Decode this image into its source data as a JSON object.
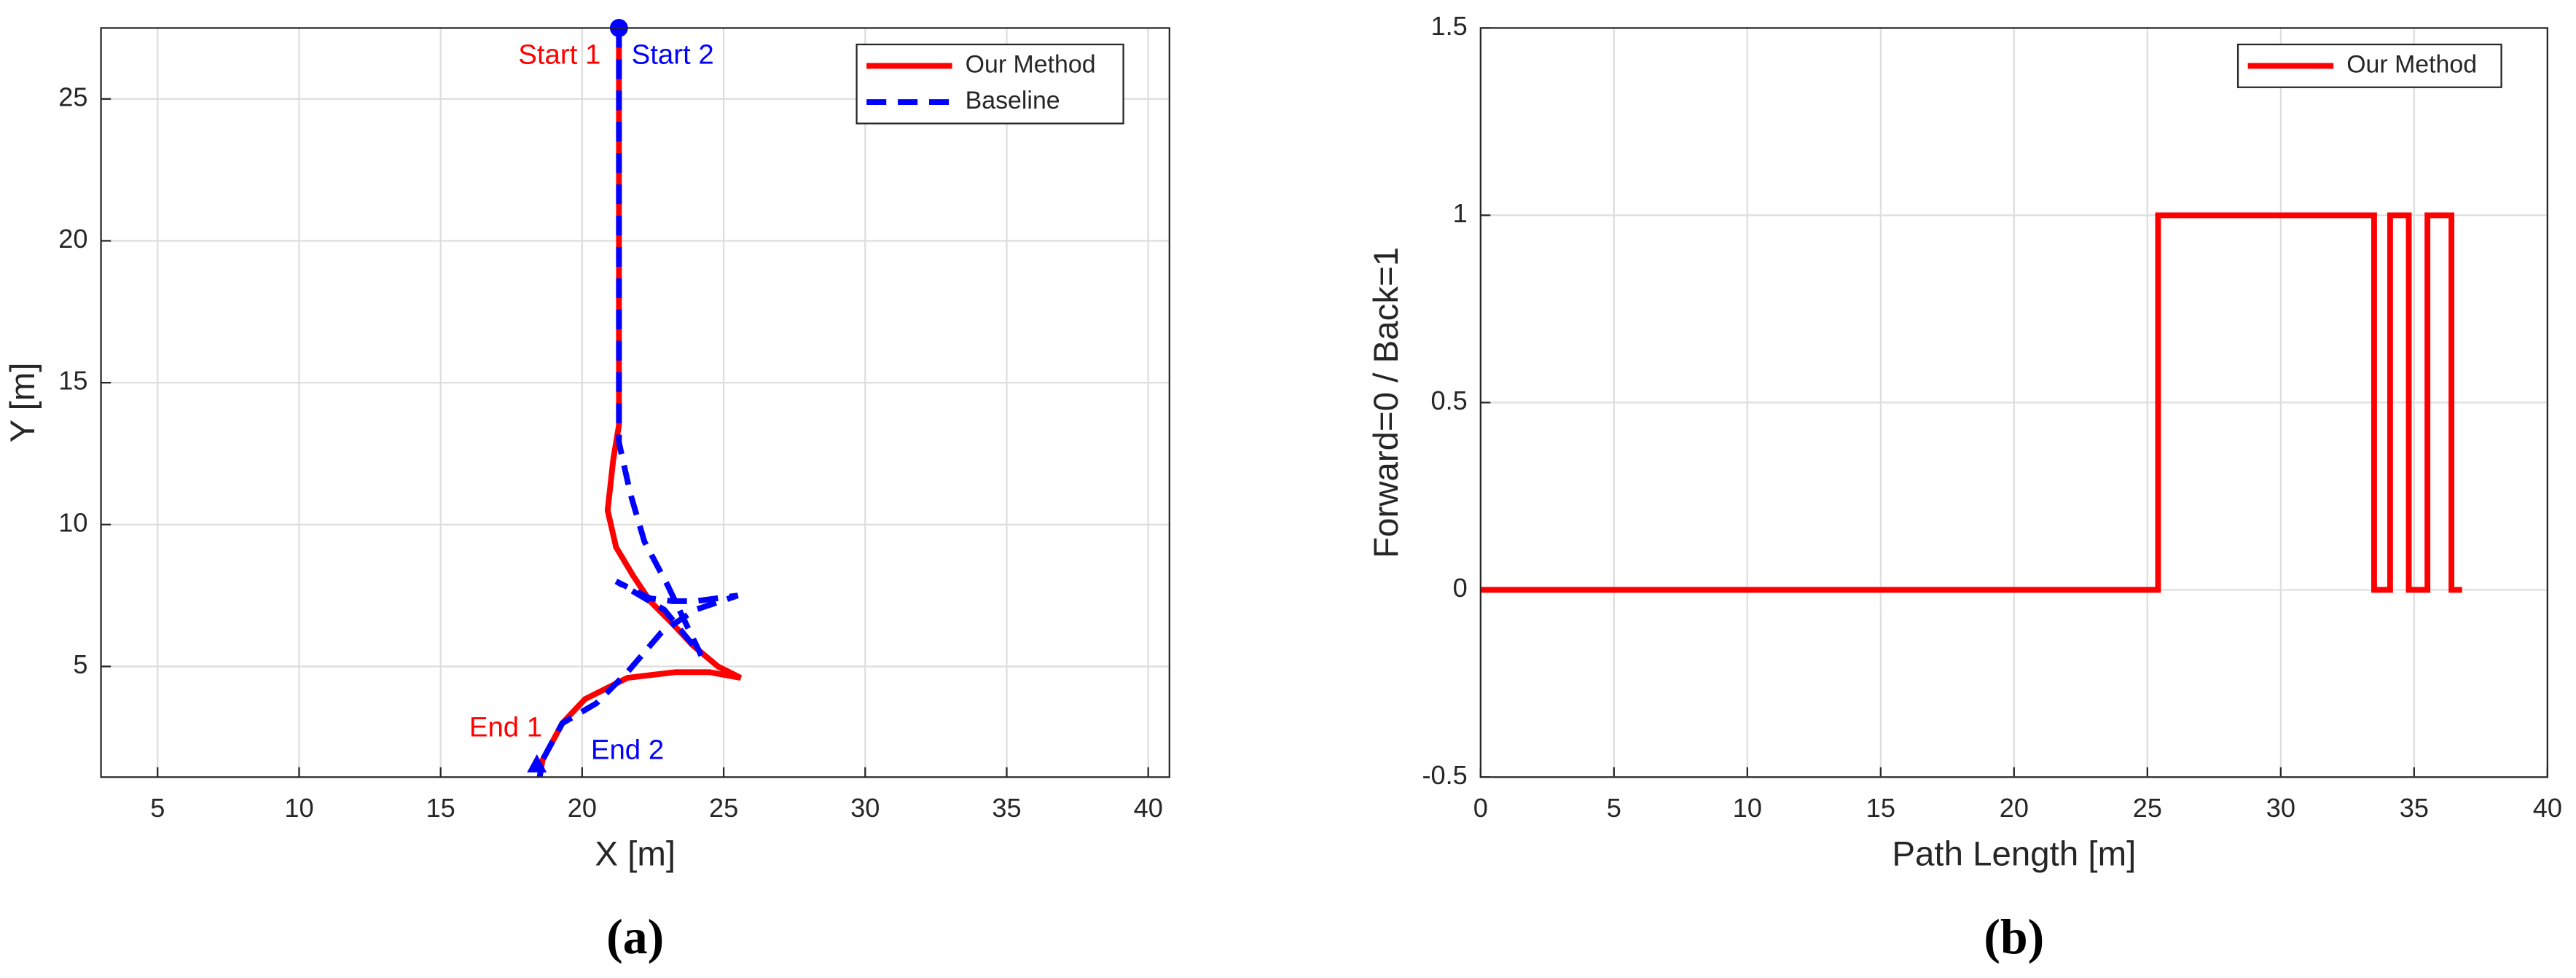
{
  "chart_data": [
    {
      "type": "line",
      "caption": "(a)",
      "xlabel": "X [m]",
      "ylabel": "Y [m]",
      "xlim": [
        3,
        40.75
      ],
      "ylim": [
        1.1,
        27.5
      ],
      "xticks": [
        5,
        10,
        15,
        20,
        25,
        30,
        35,
        40
      ],
      "yticks": [
        5,
        10,
        15,
        20,
        25
      ],
      "grid": true,
      "legend": "upper right",
      "series": [
        {
          "name": "Our Method",
          "color": "#ff0000",
          "linestyle": "solid",
          "x": [
            21.3,
            21.3,
            21.1,
            20.9,
            21.2,
            21.8,
            22.4,
            23.2,
            23.9,
            24.8,
            25.6,
            24.5,
            23.3,
            21.6,
            20.1,
            19.3,
            18.6,
            18.5
          ],
          "y": [
            27.5,
            13.5,
            12.3,
            10.5,
            9.2,
            8.2,
            7.3,
            6.5,
            5.75,
            5.0,
            4.6,
            4.8,
            4.8,
            4.6,
            3.85,
            3.0,
            1.7,
            1.1
          ]
        },
        {
          "name": "Baseline",
          "color": "#0000ff",
          "linestyle": "dashed",
          "x": [
            21.3,
            21.3,
            21.7,
            22.2,
            23.0,
            24.2,
            22.9,
            21.2,
            22.4,
            23.2,
            24.0,
            25.5,
            24.0,
            22.8,
            21.6,
            20.5,
            19.3,
            18.6,
            18.5
          ],
          "y": [
            27.5,
            12.9,
            11.1,
            9.4,
            7.9,
            5.4,
            7.0,
            8.0,
            7.4,
            7.3,
            7.3,
            7.5,
            7.0,
            6.2,
            4.8,
            3.7,
            3.0,
            1.7,
            1.1
          ]
        }
      ],
      "markers": [
        {
          "shape": "circle",
          "color": "#0000ff",
          "x": 21.3,
          "y": 27.5
        },
        {
          "shape": "triangle",
          "color": "#0000ff",
          "x": 18.4,
          "y": 1.5
        }
      ],
      "annotations": [
        {
          "text": "Start 1",
          "color": "#ff0000"
        },
        {
          "text": "Start 2",
          "color": "#0000ff"
        },
        {
          "text": "End 1",
          "color": "#ff0000"
        },
        {
          "text": "End 2",
          "color": "#0000ff"
        }
      ]
    },
    {
      "type": "line",
      "caption": "(b)",
      "xlabel": "Path Length [m]",
      "ylabel": "Forward=0 / Back=1",
      "xlim": [
        0,
        40
      ],
      "ylim": [
        -0.5,
        1.5
      ],
      "xticks": [
        0,
        5,
        10,
        15,
        20,
        25,
        30,
        35,
        40
      ],
      "yticks": [
        -0.5,
        0,
        0.5,
        1,
        1.5
      ],
      "grid": true,
      "legend": "upper right",
      "series": [
        {
          "name": "Our Method",
          "color": "#ff0000",
          "linestyle": "solid",
          "x": [
            0,
            25.4,
            25.4,
            33.5,
            33.5,
            34.1,
            34.1,
            34.8,
            34.8,
            35.5,
            35.5,
            36.4,
            36.4,
            36.8
          ],
          "y": [
            0,
            0,
            1,
            1,
            0,
            0,
            1,
            1,
            0,
            0,
            1,
            1,
            0,
            0
          ]
        }
      ]
    }
  ]
}
